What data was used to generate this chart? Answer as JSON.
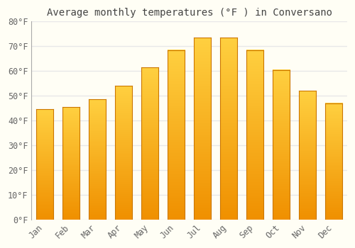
{
  "title": "Average monthly temperatures (°F ) in Conversano",
  "months": [
    "Jan",
    "Feb",
    "Mar",
    "Apr",
    "May",
    "Jun",
    "Jul",
    "Aug",
    "Sep",
    "Oct",
    "Nov",
    "Dec"
  ],
  "values": [
    44.5,
    45.5,
    48.5,
    54.0,
    61.5,
    68.5,
    73.5,
    73.5,
    68.5,
    60.5,
    52.0,
    47.0
  ],
  "bar_color_bright": "#FFD040",
  "bar_color_dark": "#F09000",
  "bar_edge_color": "#CC7700",
  "background_color": "#FFFEF5",
  "grid_color": "#E8E8E8",
  "text_color": "#444444",
  "tick_label_color": "#666666",
  "ylim": [
    0,
    80
  ],
  "yticks": [
    0,
    10,
    20,
    30,
    40,
    50,
    60,
    70,
    80
  ],
  "ytick_labels": [
    "0°F",
    "10°F",
    "20°F",
    "30°F",
    "40°F",
    "50°F",
    "60°F",
    "70°F",
    "80°F"
  ],
  "title_fontsize": 10,
  "tick_fontsize": 8.5,
  "font_family": "monospace"
}
